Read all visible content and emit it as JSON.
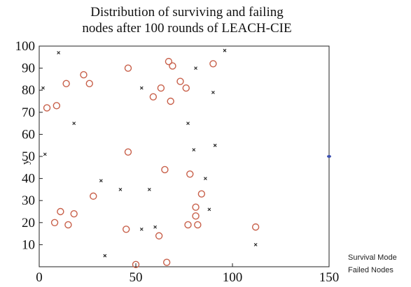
{
  "chart_data": {
    "type": "scatter",
    "title_lines": [
      "Distribution of surviving and failing",
      "nodes after 100 rounds of LEACH-CIE"
    ],
    "xlabel": "",
    "ylabel": "y",
    "xlim": [
      0,
      150
    ],
    "ylim": [
      0,
      100
    ],
    "x_ticks": [
      0,
      50,
      100,
      150
    ],
    "y_ticks": [
      10,
      20,
      30,
      40,
      50,
      60,
      70,
      80,
      90,
      100
    ],
    "grid": false,
    "legend": {
      "placement": "bottom-right-outside",
      "entries": [
        "Survival Mode",
        "Failed Nodes"
      ]
    },
    "series": [
      {
        "name": "Survival Mode",
        "marker": "circle",
        "color": "#c8604a",
        "points": [
          [
            23,
            87
          ],
          [
            14,
            83
          ],
          [
            26,
            83
          ],
          [
            46,
            90
          ],
          [
            67,
            93
          ],
          [
            69,
            91
          ],
          [
            90,
            92
          ],
          [
            73,
            84
          ],
          [
            76,
            81
          ],
          [
            63,
            81
          ],
          [
            59,
            77
          ],
          [
            68,
            75
          ],
          [
            4,
            72
          ],
          [
            9,
            73
          ],
          [
            46,
            52
          ],
          [
            65,
            44
          ],
          [
            78,
            42
          ],
          [
            84,
            33
          ],
          [
            28,
            32
          ],
          [
            81,
            27
          ],
          [
            81,
            23
          ],
          [
            11,
            25
          ],
          [
            18,
            24
          ],
          [
            8,
            20
          ],
          [
            15,
            19
          ],
          [
            45,
            17
          ],
          [
            77,
            19
          ],
          [
            82,
            19
          ],
          [
            112,
            18
          ],
          [
            62,
            14
          ],
          [
            50,
            1
          ],
          [
            66,
            2
          ]
        ]
      },
      {
        "name": "Failed Nodes",
        "marker": "x",
        "color": "#222222",
        "points": [
          [
            10,
            97
          ],
          [
            96,
            98
          ],
          [
            81,
            90
          ],
          [
            53,
            81
          ],
          [
            90,
            79
          ],
          [
            2,
            81
          ],
          [
            18,
            65
          ],
          [
            77,
            65
          ],
          [
            80,
            53
          ],
          [
            91,
            55
          ],
          [
            3,
            51
          ],
          [
            32,
            39
          ],
          [
            42,
            35
          ],
          [
            57,
            35
          ],
          [
            86,
            40
          ],
          [
            88,
            26
          ],
          [
            53,
            17
          ],
          [
            60,
            18
          ],
          [
            112,
            10
          ],
          [
            34,
            5
          ]
        ]
      }
    ],
    "marker_on_right_edge": {
      "x": 150,
      "y": 50,
      "color": "#3b4fb0"
    }
  }
}
